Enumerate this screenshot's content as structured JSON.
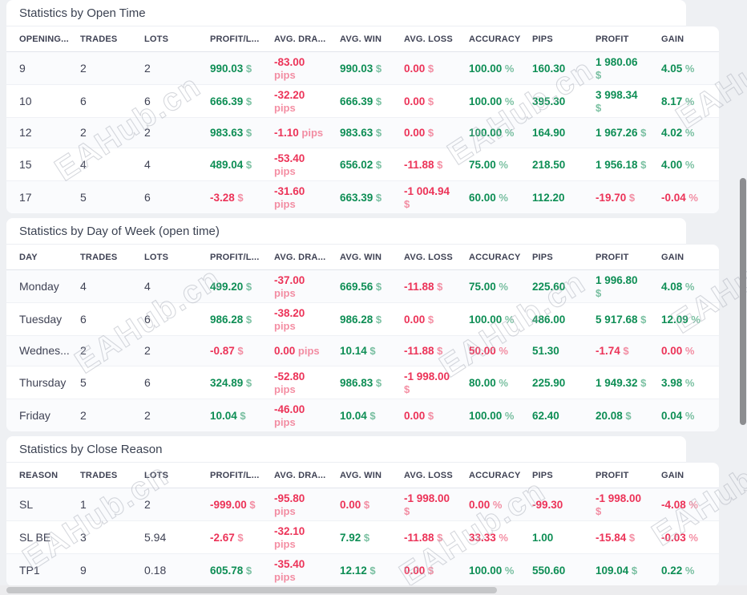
{
  "watermark": {
    "text": "EAHub.cn"
  },
  "colors": {
    "green": "#0e8e55",
    "red": "#ec3358"
  },
  "sections": [
    {
      "id": "open-time",
      "title": "Statistics by Open Time",
      "columns": [
        "OPENING...",
        "TRADES",
        "LOTS",
        "PROFIT/L...",
        "AVG. DRA...",
        "AVG. WIN",
        "AVG. LOSS",
        "ACCURACY",
        "PIPS",
        "PROFIT",
        "GAIN"
      ],
      "rows": [
        [
          {
            "t": "9"
          },
          {
            "t": "2"
          },
          {
            "t": "2"
          },
          {
            "v": "990.03",
            "s": "$",
            "c": "g"
          },
          {
            "v": "-83.00",
            "s": "pips",
            "c": "r",
            "w": 1
          },
          {
            "v": "990.03",
            "s": "$",
            "c": "g"
          },
          {
            "v": "0.00",
            "s": "$",
            "c": "r"
          },
          {
            "v": "100.00",
            "s": "%",
            "c": "g"
          },
          {
            "v": "160.30",
            "s": "",
            "c": "g"
          },
          {
            "v": "1 980.06",
            "s": "$",
            "c": "g",
            "w": 1
          },
          {
            "v": "4.05",
            "s": "%",
            "c": "g"
          }
        ],
        [
          {
            "t": "10"
          },
          {
            "t": "6"
          },
          {
            "t": "6"
          },
          {
            "v": "666.39",
            "s": "$",
            "c": "g"
          },
          {
            "v": "-32.20",
            "s": "pips",
            "c": "r",
            "w": 1
          },
          {
            "v": "666.39",
            "s": "$",
            "c": "g"
          },
          {
            "v": "0.00",
            "s": "$",
            "c": "r"
          },
          {
            "v": "100.00",
            "s": "%",
            "c": "g"
          },
          {
            "v": "395.30",
            "s": "",
            "c": "g"
          },
          {
            "v": "3 998.34",
            "s": "$",
            "c": "g",
            "w": 1
          },
          {
            "v": "8.17",
            "s": "%",
            "c": "g"
          }
        ],
        [
          {
            "t": "12"
          },
          {
            "t": "2"
          },
          {
            "t": "2"
          },
          {
            "v": "983.63",
            "s": "$",
            "c": "g"
          },
          {
            "v": "-1.10",
            "s": "pips",
            "c": "r"
          },
          {
            "v": "983.63",
            "s": "$",
            "c": "g"
          },
          {
            "v": "0.00",
            "s": "$",
            "c": "r"
          },
          {
            "v": "100.00",
            "s": "%",
            "c": "g"
          },
          {
            "v": "164.90",
            "s": "",
            "c": "g"
          },
          {
            "v": "1 967.26",
            "s": "$",
            "c": "g"
          },
          {
            "v": "4.02",
            "s": "%",
            "c": "g"
          }
        ],
        [
          {
            "t": "15"
          },
          {
            "t": "4"
          },
          {
            "t": "4"
          },
          {
            "v": "489.04",
            "s": "$",
            "c": "g"
          },
          {
            "v": "-53.40",
            "s": "pips",
            "c": "r",
            "w": 1
          },
          {
            "v": "656.02",
            "s": "$",
            "c": "g"
          },
          {
            "v": "-11.88",
            "s": "$",
            "c": "r"
          },
          {
            "v": "75.00",
            "s": "%",
            "c": "g"
          },
          {
            "v": "218.50",
            "s": "",
            "c": "g"
          },
          {
            "v": "1 956.18",
            "s": "$",
            "c": "g"
          },
          {
            "v": "4.00",
            "s": "%",
            "c": "g"
          }
        ],
        [
          {
            "t": "17"
          },
          {
            "t": "5"
          },
          {
            "t": "6"
          },
          {
            "v": "-3.28",
            "s": "$",
            "c": "r"
          },
          {
            "v": "-31.60",
            "s": "pips",
            "c": "r",
            "w": 1
          },
          {
            "v": "663.39",
            "s": "$",
            "c": "g"
          },
          {
            "v": "-1 004.94",
            "s": "$",
            "c": "r",
            "w": 1
          },
          {
            "v": "60.00",
            "s": "%",
            "c": "g"
          },
          {
            "v": "112.20",
            "s": "",
            "c": "g"
          },
          {
            "v": "-19.70",
            "s": "$",
            "c": "r"
          },
          {
            "v": "-0.04",
            "s": "%",
            "c": "r"
          }
        ]
      ]
    },
    {
      "id": "day-of-week",
      "title": "Statistics by Day of Week (open time)",
      "columns": [
        "DAY",
        "TRADES",
        "LOTS",
        "PROFIT/L...",
        "AVG. DRA...",
        "AVG. WIN",
        "AVG. LOSS",
        "ACCURACY",
        "PIPS",
        "PROFIT",
        "GAIN"
      ],
      "rows": [
        [
          {
            "t": "Monday"
          },
          {
            "t": "4"
          },
          {
            "t": "4"
          },
          {
            "v": "499.20",
            "s": "$",
            "c": "g"
          },
          {
            "v": "-37.00",
            "s": "pips",
            "c": "r",
            "w": 1
          },
          {
            "v": "669.56",
            "s": "$",
            "c": "g"
          },
          {
            "v": "-11.88",
            "s": "$",
            "c": "r"
          },
          {
            "v": "75.00",
            "s": "%",
            "c": "g"
          },
          {
            "v": "225.60",
            "s": "",
            "c": "g"
          },
          {
            "v": "1 996.80",
            "s": "$",
            "c": "g",
            "w": 1
          },
          {
            "v": "4.08",
            "s": "%",
            "c": "g"
          }
        ],
        [
          {
            "t": "Tuesday"
          },
          {
            "t": "6"
          },
          {
            "t": "6"
          },
          {
            "v": "986.28",
            "s": "$",
            "c": "g"
          },
          {
            "v": "-38.20",
            "s": "pips",
            "c": "r",
            "w": 1
          },
          {
            "v": "986.28",
            "s": "$",
            "c": "g"
          },
          {
            "v": "0.00",
            "s": "$",
            "c": "r"
          },
          {
            "v": "100.00",
            "s": "%",
            "c": "g"
          },
          {
            "v": "486.00",
            "s": "",
            "c": "g"
          },
          {
            "v": "5 917.68",
            "s": "$",
            "c": "g"
          },
          {
            "v": "12.09",
            "s": "%",
            "c": "g"
          }
        ],
        [
          {
            "t": "Wednes..."
          },
          {
            "t": "2"
          },
          {
            "t": "2"
          },
          {
            "v": "-0.87",
            "s": "$",
            "c": "r"
          },
          {
            "v": "0.00",
            "s": "pips",
            "c": "r"
          },
          {
            "v": "10.14",
            "s": "$",
            "c": "g"
          },
          {
            "v": "-11.88",
            "s": "$",
            "c": "r"
          },
          {
            "v": "50.00",
            "s": "%",
            "c": "r"
          },
          {
            "v": "51.30",
            "s": "",
            "c": "g"
          },
          {
            "v": "-1.74",
            "s": "$",
            "c": "r"
          },
          {
            "v": "0.00",
            "s": "%",
            "c": "r"
          }
        ],
        [
          {
            "t": "Thursday"
          },
          {
            "t": "5"
          },
          {
            "t": "6"
          },
          {
            "v": "324.89",
            "s": "$",
            "c": "g"
          },
          {
            "v": "-52.80",
            "s": "pips",
            "c": "r",
            "w": 1
          },
          {
            "v": "986.83",
            "s": "$",
            "c": "g"
          },
          {
            "v": "-1 998.00",
            "s": "$",
            "c": "r",
            "w": 1
          },
          {
            "v": "80.00",
            "s": "%",
            "c": "g"
          },
          {
            "v": "225.90",
            "s": "",
            "c": "g"
          },
          {
            "v": "1 949.32",
            "s": "$",
            "c": "g"
          },
          {
            "v": "3.98",
            "s": "%",
            "c": "g"
          }
        ],
        [
          {
            "t": "Friday"
          },
          {
            "t": "2"
          },
          {
            "t": "2"
          },
          {
            "v": "10.04",
            "s": "$",
            "c": "g"
          },
          {
            "v": "-46.00",
            "s": "pips",
            "c": "r",
            "w": 1
          },
          {
            "v": "10.04",
            "s": "$",
            "c": "g"
          },
          {
            "v": "0.00",
            "s": "$",
            "c": "r"
          },
          {
            "v": "100.00",
            "s": "%",
            "c": "g"
          },
          {
            "v": "62.40",
            "s": "",
            "c": "g"
          },
          {
            "v": "20.08",
            "s": "$",
            "c": "g"
          },
          {
            "v": "0.04",
            "s": "%",
            "c": "g"
          }
        ]
      ]
    },
    {
      "id": "close-reason",
      "title": "Statistics by Close Reason",
      "columns": [
        "REASON",
        "TRADES",
        "LOTS",
        "PROFIT/L...",
        "AVG. DRA...",
        "AVG. WIN",
        "AVG. LOSS",
        "ACCURACY",
        "PIPS",
        "PROFIT",
        "GAIN"
      ],
      "rows": [
        [
          {
            "t": "SL"
          },
          {
            "t": "1"
          },
          {
            "t": "2"
          },
          {
            "v": "-999.00",
            "s": "$",
            "c": "r"
          },
          {
            "v": "-95.80",
            "s": "pips",
            "c": "r",
            "w": 1
          },
          {
            "v": "0.00",
            "s": "$",
            "c": "r"
          },
          {
            "v": "-1 998.00",
            "s": "$",
            "c": "r",
            "w": 1
          },
          {
            "v": "0.00",
            "s": "%",
            "c": "r"
          },
          {
            "v": "-99.30",
            "s": "",
            "c": "r"
          },
          {
            "v": "-1 998.00",
            "s": "$",
            "c": "r",
            "w": 1
          },
          {
            "v": "-4.08",
            "s": "%",
            "c": "r"
          }
        ],
        [
          {
            "t": "SL BE"
          },
          {
            "t": "3"
          },
          {
            "t": "5.94"
          },
          {
            "v": "-2.67",
            "s": "$",
            "c": "r"
          },
          {
            "v": "-32.10",
            "s": "pips",
            "c": "r",
            "w": 1
          },
          {
            "v": "7.92",
            "s": "$",
            "c": "g"
          },
          {
            "v": "-11.88",
            "s": "$",
            "c": "r"
          },
          {
            "v": "33.33",
            "s": "%",
            "c": "r"
          },
          {
            "v": "1.00",
            "s": "",
            "c": "g"
          },
          {
            "v": "-15.84",
            "s": "$",
            "c": "r"
          },
          {
            "v": "-0.03",
            "s": "%",
            "c": "r"
          }
        ],
        [
          {
            "t": "TP1"
          },
          {
            "t": "9"
          },
          {
            "t": "0.18"
          },
          {
            "v": "605.78",
            "s": "$",
            "c": "g"
          },
          {
            "v": "-35.40",
            "s": "pips",
            "c": "r",
            "w": 1
          },
          {
            "v": "12.12",
            "s": "$",
            "c": "g"
          },
          {
            "v": "0.00",
            "s": "$",
            "c": "r"
          },
          {
            "v": "100.00",
            "s": "%",
            "c": "g"
          },
          {
            "v": "550.60",
            "s": "",
            "c": "g"
          },
          {
            "v": "109.04",
            "s": "$",
            "c": "g"
          },
          {
            "v": "0.22",
            "s": "%",
            "c": "g"
          }
        ]
      ]
    }
  ]
}
